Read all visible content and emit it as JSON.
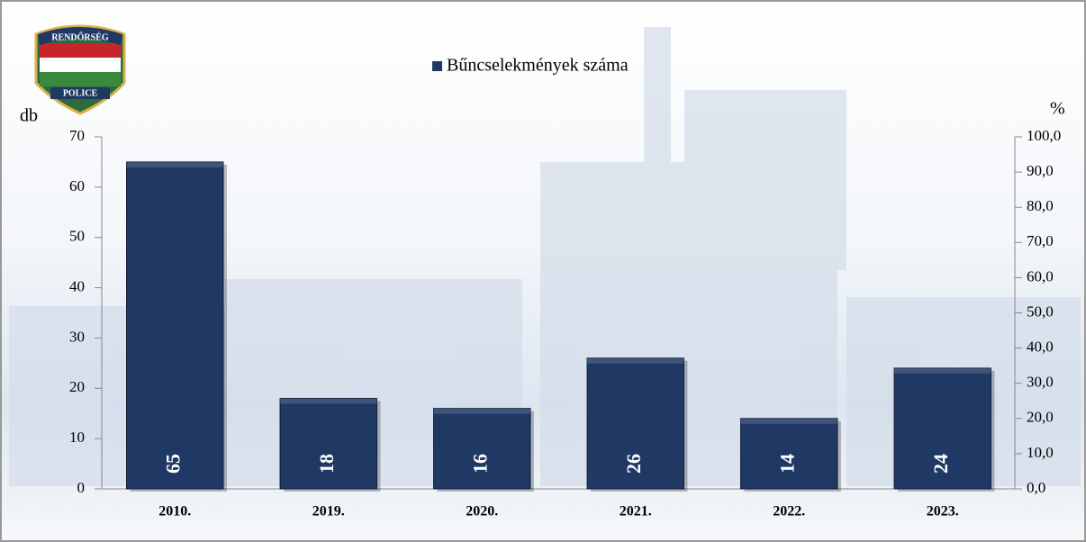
{
  "chart_data": {
    "type": "bar",
    "categories": [
      "2010.",
      "2019.",
      "2020.",
      "2021.",
      "2022.",
      "2023."
    ],
    "series": [
      {
        "name": "Bűncselekmények száma",
        "color": "#1f3864",
        "values": [
          65,
          18,
          16,
          26,
          14,
          24
        ]
      }
    ],
    "ylabel": "db",
    "y2label": "%",
    "ylim": [
      0,
      70
    ],
    "yticks": [
      0,
      10,
      20,
      30,
      40,
      50,
      60,
      70
    ],
    "y2lim": [
      0,
      100
    ],
    "y2ticks": [
      {
        "value": 0,
        "label": "0,0"
      },
      {
        "value": 10,
        "label": "10,0"
      },
      {
        "value": 20,
        "label": "20,0"
      },
      {
        "value": 30,
        "label": "30,0"
      },
      {
        "value": 40,
        "label": "40,0"
      },
      {
        "value": 50,
        "label": "50,0"
      },
      {
        "value": 60,
        "label": "60,0"
      },
      {
        "value": 70,
        "label": "70,0"
      },
      {
        "value": 80,
        "label": "80,0"
      },
      {
        "value": 90,
        "label": "90,0"
      },
      {
        "value": 100,
        "label": "100,0"
      }
    ],
    "legend": "top",
    "annotations": [
      "RENDŐRSÉG",
      "POLICE"
    ]
  }
}
